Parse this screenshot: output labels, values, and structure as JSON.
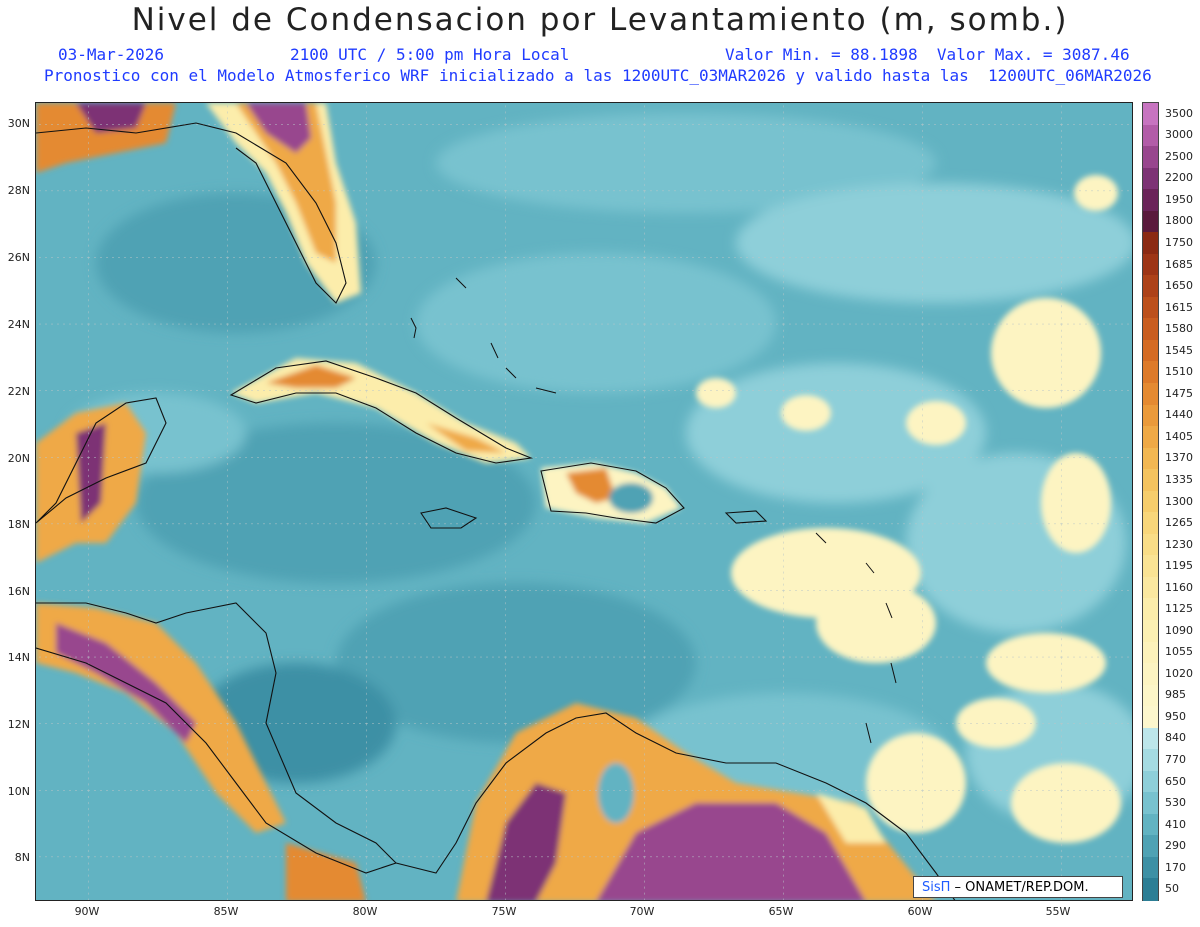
{
  "header": {
    "title": "Nivel de Condensacion por Levantamiento (m, somb.)",
    "date": "03-Mar-2026",
    "time": "2100 UTC / 5:00 pm Hora Local",
    "minmax": "Valor Min. = 88.1898  Valor Max. = 3087.46",
    "description": "Pronostico con el Modelo Atmosferico WRF inicializado a las 1200UTC_03MAR2026 y valido hasta las  1200UTC_06MAR2026"
  },
  "map": {
    "lat_labels": [
      "30N",
      "28N",
      "26N",
      "24N",
      "22N",
      "20N",
      "18N",
      "16N",
      "14N",
      "12N",
      "10N",
      "8N"
    ],
    "lon_labels": [
      "90W",
      "85W",
      "80W",
      "75W",
      "70W",
      "65W",
      "60W",
      "55W"
    ]
  },
  "colorbar": {
    "labels": [
      "3500",
      "3000",
      "2500",
      "2200",
      "1950",
      "1800",
      "1750",
      "1685",
      "1650",
      "1615",
      "1580",
      "1545",
      "1510",
      "1475",
      "1440",
      "1405",
      "1370",
      "1335",
      "1300",
      "1265",
      "1230",
      "1195",
      "1160",
      "1125",
      "1090",
      "1055",
      "1020",
      "985",
      "950",
      "840",
      "770",
      "650",
      "530",
      "410",
      "290",
      "170",
      "50"
    ],
    "colors": [
      "#c774c0",
      "#b25ca8",
      "#98468e",
      "#7d3375",
      "#6a2459",
      "#5a1a3c",
      "#8b2a13",
      "#9d3516",
      "#ad4219",
      "#bc501c",
      "#c95d20",
      "#d46b24",
      "#dd7a2a",
      "#e48a32",
      "#ea9a3b",
      "#efa946",
      "#f2b752",
      "#f4c35f",
      "#f6cd6c",
      "#f8d67a",
      "#f9dd87",
      "#fae394",
      "#fbe8a0",
      "#fcedab",
      "#fcf0b3",
      "#fdf2bb",
      "#fdf4c2",
      "#fdf6c8",
      "#fdf7cd",
      "#bde6ea",
      "#a5dbe2",
      "#8ecfd9",
      "#78c2cf",
      "#62b3c2",
      "#4fa2b4",
      "#3d90a5",
      "#2c7e95"
    ]
  },
  "credit": {
    "brand": "SisΠ",
    "text": " – ONAMET/REP.DOM."
  }
}
